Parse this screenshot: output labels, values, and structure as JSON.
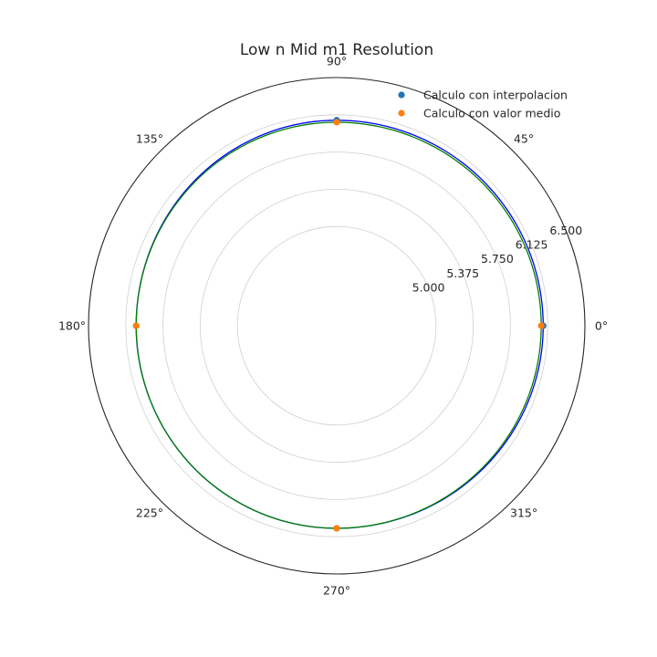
{
  "chart_data": {
    "type": "polar",
    "title": "Low n Mid m1 Resolution",
    "angle_ticks": [
      {
        "deg": 0,
        "label": "0°"
      },
      {
        "deg": 45,
        "label": "45°"
      },
      {
        "deg": 90,
        "label": "90°"
      },
      {
        "deg": 135,
        "label": "135°"
      },
      {
        "deg": 180,
        "label": "180°"
      },
      {
        "deg": 225,
        "label": "225°"
      },
      {
        "deg": 270,
        "label": "270°"
      },
      {
        "deg": 315,
        "label": "315°"
      }
    ],
    "radial_ticks": [
      {
        "value": 5.0,
        "label": "5.000"
      },
      {
        "value": 5.375,
        "label": "5.375"
      },
      {
        "value": 5.75,
        "label": "5.750"
      },
      {
        "value": 6.125,
        "label": "6.125"
      },
      {
        "value": 6.5,
        "label": "6.500"
      }
    ],
    "rlim": [
      4.0,
      6.5
    ],
    "radial_label_angle_deg": 22.5,
    "grid": true,
    "legend_placement": "top-right",
    "series": [
      {
        "name": "Calculo con interpolacion",
        "kind": "scatter",
        "color": "#1f77b4",
        "points": [
          {
            "theta": 0,
            "r": 6.08
          },
          {
            "theta": 90,
            "r": 6.07
          },
          {
            "theta": 180,
            "r": 6.02
          },
          {
            "theta": 270,
            "r": 6.04
          }
        ]
      },
      {
        "name": "Calculo con valor medio",
        "kind": "scatter",
        "color": "#ff7f0e",
        "points": [
          {
            "theta": 0,
            "r": 6.06
          },
          {
            "theta": 90,
            "r": 6.05
          },
          {
            "theta": 180,
            "r": 6.02
          },
          {
            "theta": 270,
            "r": 6.04
          }
        ]
      },
      {
        "kind": "line",
        "color": "#0000ff",
        "curve": [
          {
            "theta": 0,
            "r": 6.08
          },
          {
            "theta": 90,
            "r": 6.07
          },
          {
            "theta": 180,
            "r": 6.02
          },
          {
            "theta": 270,
            "r": 6.04
          }
        ]
      },
      {
        "kind": "line",
        "color": "#008000",
        "curve": [
          {
            "theta": 0,
            "r": 6.06
          },
          {
            "theta": 90,
            "r": 6.05
          },
          {
            "theta": 180,
            "r": 6.02
          },
          {
            "theta": 270,
            "r": 6.04
          }
        ]
      }
    ]
  }
}
